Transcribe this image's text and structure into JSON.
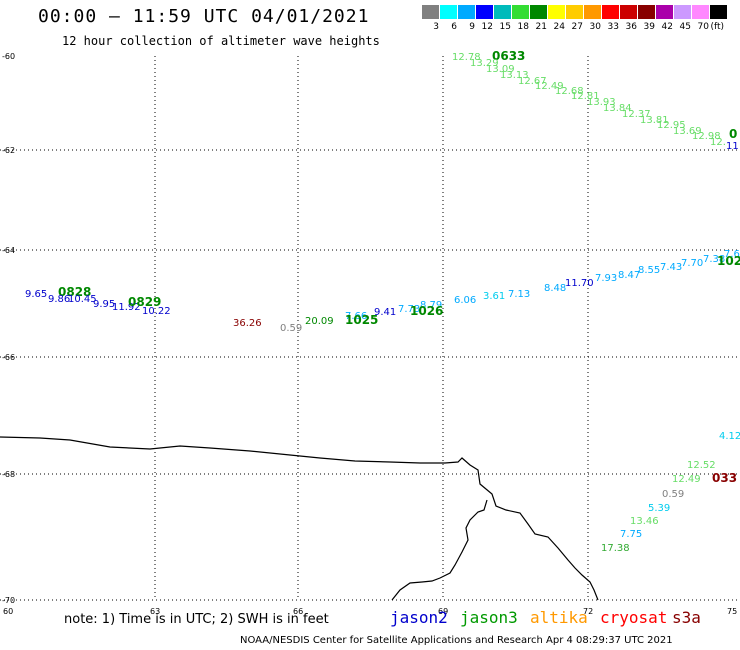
{
  "header": {
    "title": "00:00 – 11:59 UTC 04/01/2021",
    "subtitle": "12 hour collection of altimeter wave heights"
  },
  "legend": {
    "colors": [
      "#808080",
      "#00ffff",
      "#00aaff",
      "#0000ff",
      "#00bbbb",
      "#33dd33",
      "#008800",
      "#ffff00",
      "#ffcc00",
      "#ff9900",
      "#ff0000",
      "#cc0000",
      "#880000",
      "#aa00aa",
      "#cc99ff",
      "#ff88ff",
      "#000000"
    ],
    "labels": [
      "3",
      "6",
      "9",
      "12",
      "15",
      "18",
      "21",
      "24",
      "27",
      "30",
      "33",
      "36",
      "39",
      "42",
      "45",
      "70",
      "(ft)"
    ]
  },
  "axes": {
    "lat_labels": [
      "-60",
      "-62",
      "-64",
      "-66",
      "-68",
      "-70"
    ],
    "lon_labels": [
      "60",
      "63",
      "66",
      "69",
      "72",
      "75"
    ]
  },
  "map_labels": [
    {
      "t": "12.78",
      "c": "#66dd66"
    },
    {
      "t": "0633",
      "c": "#008800",
      "bold": true
    },
    {
      "t": "13.29",
      "c": "#66dd66"
    },
    {
      "t": "13.09",
      "c": "#66dd66"
    },
    {
      "t": "13.13",
      "c": "#66dd66"
    },
    {
      "t": "12.67",
      "c": "#66dd66"
    },
    {
      "t": "12.49",
      "c": "#66dd66"
    },
    {
      "t": "12.68",
      "c": "#66dd66"
    },
    {
      "t": "12.81",
      "c": "#66dd66"
    },
    {
      "t": "13.93",
      "c": "#66dd66"
    },
    {
      "t": "13.84",
      "c": "#66dd66"
    },
    {
      "t": "12.37",
      "c": "#66dd66"
    },
    {
      "t": "13.81",
      "c": "#66dd66"
    },
    {
      "t": "12.95",
      "c": "#66dd66"
    },
    {
      "t": "13.69",
      "c": "#66dd66"
    },
    {
      "t": "12.98",
      "c": "#66dd66"
    },
    {
      "t": "12.",
      "c": "#66dd66"
    },
    {
      "t": "0",
      "c": "#008800",
      "bold": true
    },
    {
      "t": "11",
      "c": "#0000cc"
    },
    {
      "t": "9.65",
      "c": "#0000cc"
    },
    {
      "t": "0828",
      "c": "#008800",
      "bold": true
    },
    {
      "t": "9.86",
      "c": "#0000cc"
    },
    {
      "t": "10.45",
      "c": "#0000cc"
    },
    {
      "t": "9.95",
      "c": "#0000cc"
    },
    {
      "t": "11.92",
      "c": "#0000cc"
    },
    {
      "t": "0829",
      "c": "#008800",
      "bold": true
    },
    {
      "t": "10.22",
      "c": "#0000cc"
    },
    {
      "t": "36.26",
      "c": "#880000"
    },
    {
      "t": "0.59",
      "c": "#808080"
    },
    {
      "t": "20.09",
      "c": "#008800"
    },
    {
      "t": "7.66",
      "c": "#00aaff"
    },
    {
      "t": "1025",
      "c": "#008800",
      "bold": true
    },
    {
      "t": "9.41",
      "c": "#0000cc"
    },
    {
      "t": "7.73",
      "c": "#00aaff"
    },
    {
      "t": "8.79",
      "c": "#00aaff"
    },
    {
      "t": "1026",
      "c": "#008800",
      "bold": true
    },
    {
      "t": "6.06",
      "c": "#00aaff"
    },
    {
      "t": "3.61",
      "c": "#00ccee"
    },
    {
      "t": "7.13",
      "c": "#00aaff"
    },
    {
      "t": "8.48",
      "c": "#00aaff"
    },
    {
      "t": "11.70",
      "c": "#0000cc"
    },
    {
      "t": "7.93",
      "c": "#00aaff"
    },
    {
      "t": "8.47",
      "c": "#00aaff"
    },
    {
      "t": "8.55",
      "c": "#00aaff"
    },
    {
      "t": "7.43",
      "c": "#00aaff"
    },
    {
      "t": "7.70",
      "c": "#00aaff"
    },
    {
      "t": "7.38",
      "c": "#00aaff"
    },
    {
      "t": "7.6",
      "c": "#00aaff"
    },
    {
      "t": "102",
      "c": "#008800",
      "bold": true
    },
    {
      "t": "4.12",
      "c": "#00ccee"
    },
    {
      "t": "12.52",
      "c": "#66dd66"
    },
    {
      "t": "12.49",
      "c": "#66dd66"
    },
    {
      "t": "033",
      "c": "#880000",
      "bold": true
    },
    {
      "t": "0.59",
      "c": "#808080"
    },
    {
      "t": "5.39",
      "c": "#00ccee"
    },
    {
      "t": "13.46",
      "c": "#66dd66"
    },
    {
      "t": "7.75",
      "c": "#00aaff"
    },
    {
      "t": "17.38",
      "c": "#33aa33"
    }
  ],
  "footer": {
    "note": "note:  1) Time is in UTC;  2) SWH is in feet",
    "satellites": [
      {
        "name": "jason2",
        "color": "#0000cc"
      },
      {
        "name": "jason3",
        "color": "#009900"
      },
      {
        "name": "altika",
        "color": "#ff9900"
      },
      {
        "name": "cryosat",
        "color": "#ff0000"
      },
      {
        "name": "s3a",
        "color": "#880000"
      }
    ],
    "credit": "NOAA/NESDIS Center for Satellite Applications and Research    Apr  4 08:29:37 UTC 2021"
  }
}
